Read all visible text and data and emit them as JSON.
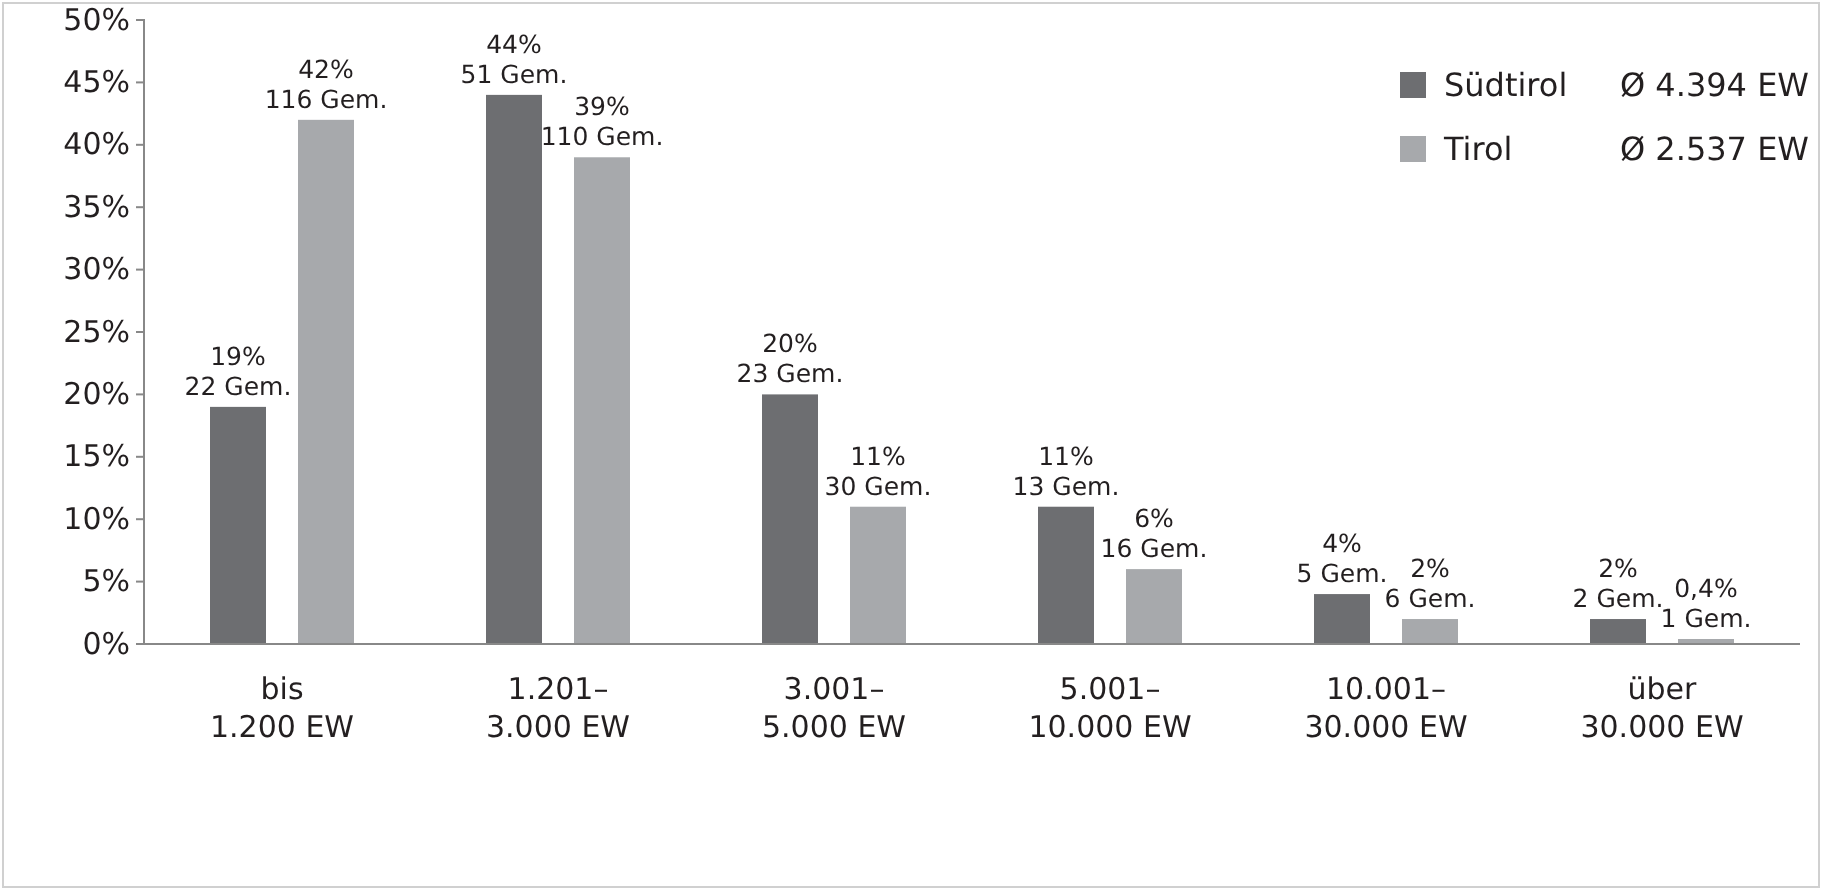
{
  "chart_data": {
    "type": "bar",
    "categories": [
      "bis\n1.200 EW",
      "1.201–\n3.000 EW",
      "3.001–\n5.000 EW",
      "5.001–\n10.000 EW",
      "10.001–\n30.000 EW",
      "über\n30.000 EW"
    ],
    "series": [
      {
        "name": "Südtirol",
        "color": "#6d6e71",
        "values": [
          19,
          44,
          20,
          11,
          4,
          2
        ],
        "value_labels": [
          "19%\n22 Gem.",
          "44%\n51 Gem.",
          "20%\n23 Gem.",
          "11%\n13 Gem.",
          "4%\n5 Gem.",
          "2%\n2 Gem."
        ]
      },
      {
        "name": "Tirol",
        "color": "#a7a9ac",
        "values": [
          42,
          39,
          11,
          6,
          2,
          0.4
        ],
        "value_labels": [
          "42%\n116 Gem.",
          "39%\n110 Gem.",
          "11%\n30 Gem.",
          "6%\n16 Gem.",
          "2%\n6 Gem.",
          "0,4%\n1 Gem."
        ]
      }
    ],
    "ylim": [
      0,
      50
    ],
    "yticks": [
      {
        "value": 0,
        "label": "0%"
      },
      {
        "value": 5,
        "label": "5%"
      },
      {
        "value": 10,
        "label": "10%"
      },
      {
        "value": 15,
        "label": "15%"
      },
      {
        "value": 20,
        "label": "20%"
      },
      {
        "value": 25,
        "label": "25%"
      },
      {
        "value": 30,
        "label": "30%"
      },
      {
        "value": 35,
        "label": "35%"
      },
      {
        "value": 40,
        "label": "40%"
      },
      {
        "value": 45,
        "label": "45%"
      },
      {
        "value": 50,
        "label": "50%"
      }
    ],
    "legend": "top right",
    "grid": false,
    "annotations": [
      "Ø 4.394 EW",
      "Ø 2.537 EW"
    ]
  }
}
